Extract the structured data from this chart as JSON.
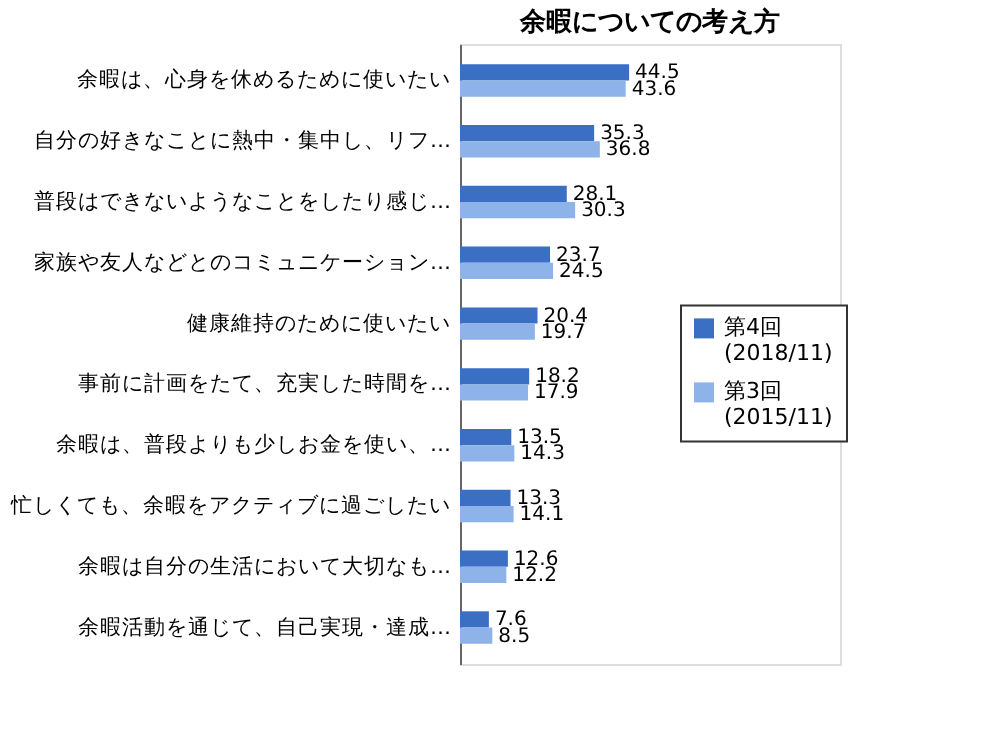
{
  "chart_data": {
    "type": "bar",
    "orientation": "horizontal",
    "title": "余暇についての考え方",
    "categories": [
      "余暇は、心身を休めるために使いたい",
      "自分の好きなことに熱中・集中し、リフ…",
      "普段はできないようなことをしたり感じ…",
      "家族や友人などとのコミュニケーション…",
      "健康維持のために使いたい",
      "事前に計画をたて、充実した時間を…",
      "余暇は、普段よりも少しお金を使い、…",
      "忙しくても、余暇をアクティブに過ごしたい",
      "余暇は自分の生活において大切なも…",
      "余暇活動を通じて、自己実現・達成…"
    ],
    "series": [
      {
        "name": "第4回 (2018/11)",
        "color": "#3a6fc4",
        "values": [
          44.5,
          35.3,
          28.1,
          23.7,
          20.4,
          18.2,
          13.5,
          13.3,
          12.6,
          7.6
        ]
      },
      {
        "name": "第3回 (2015/11)",
        "color": "#8db3e8",
        "values": [
          43.6,
          36.8,
          30.3,
          24.5,
          19.7,
          17.9,
          14.3,
          14.1,
          12.2,
          8.5
        ]
      }
    ],
    "xlim": [
      0,
      100
    ],
    "legend": "right",
    "data_labels": true
  }
}
